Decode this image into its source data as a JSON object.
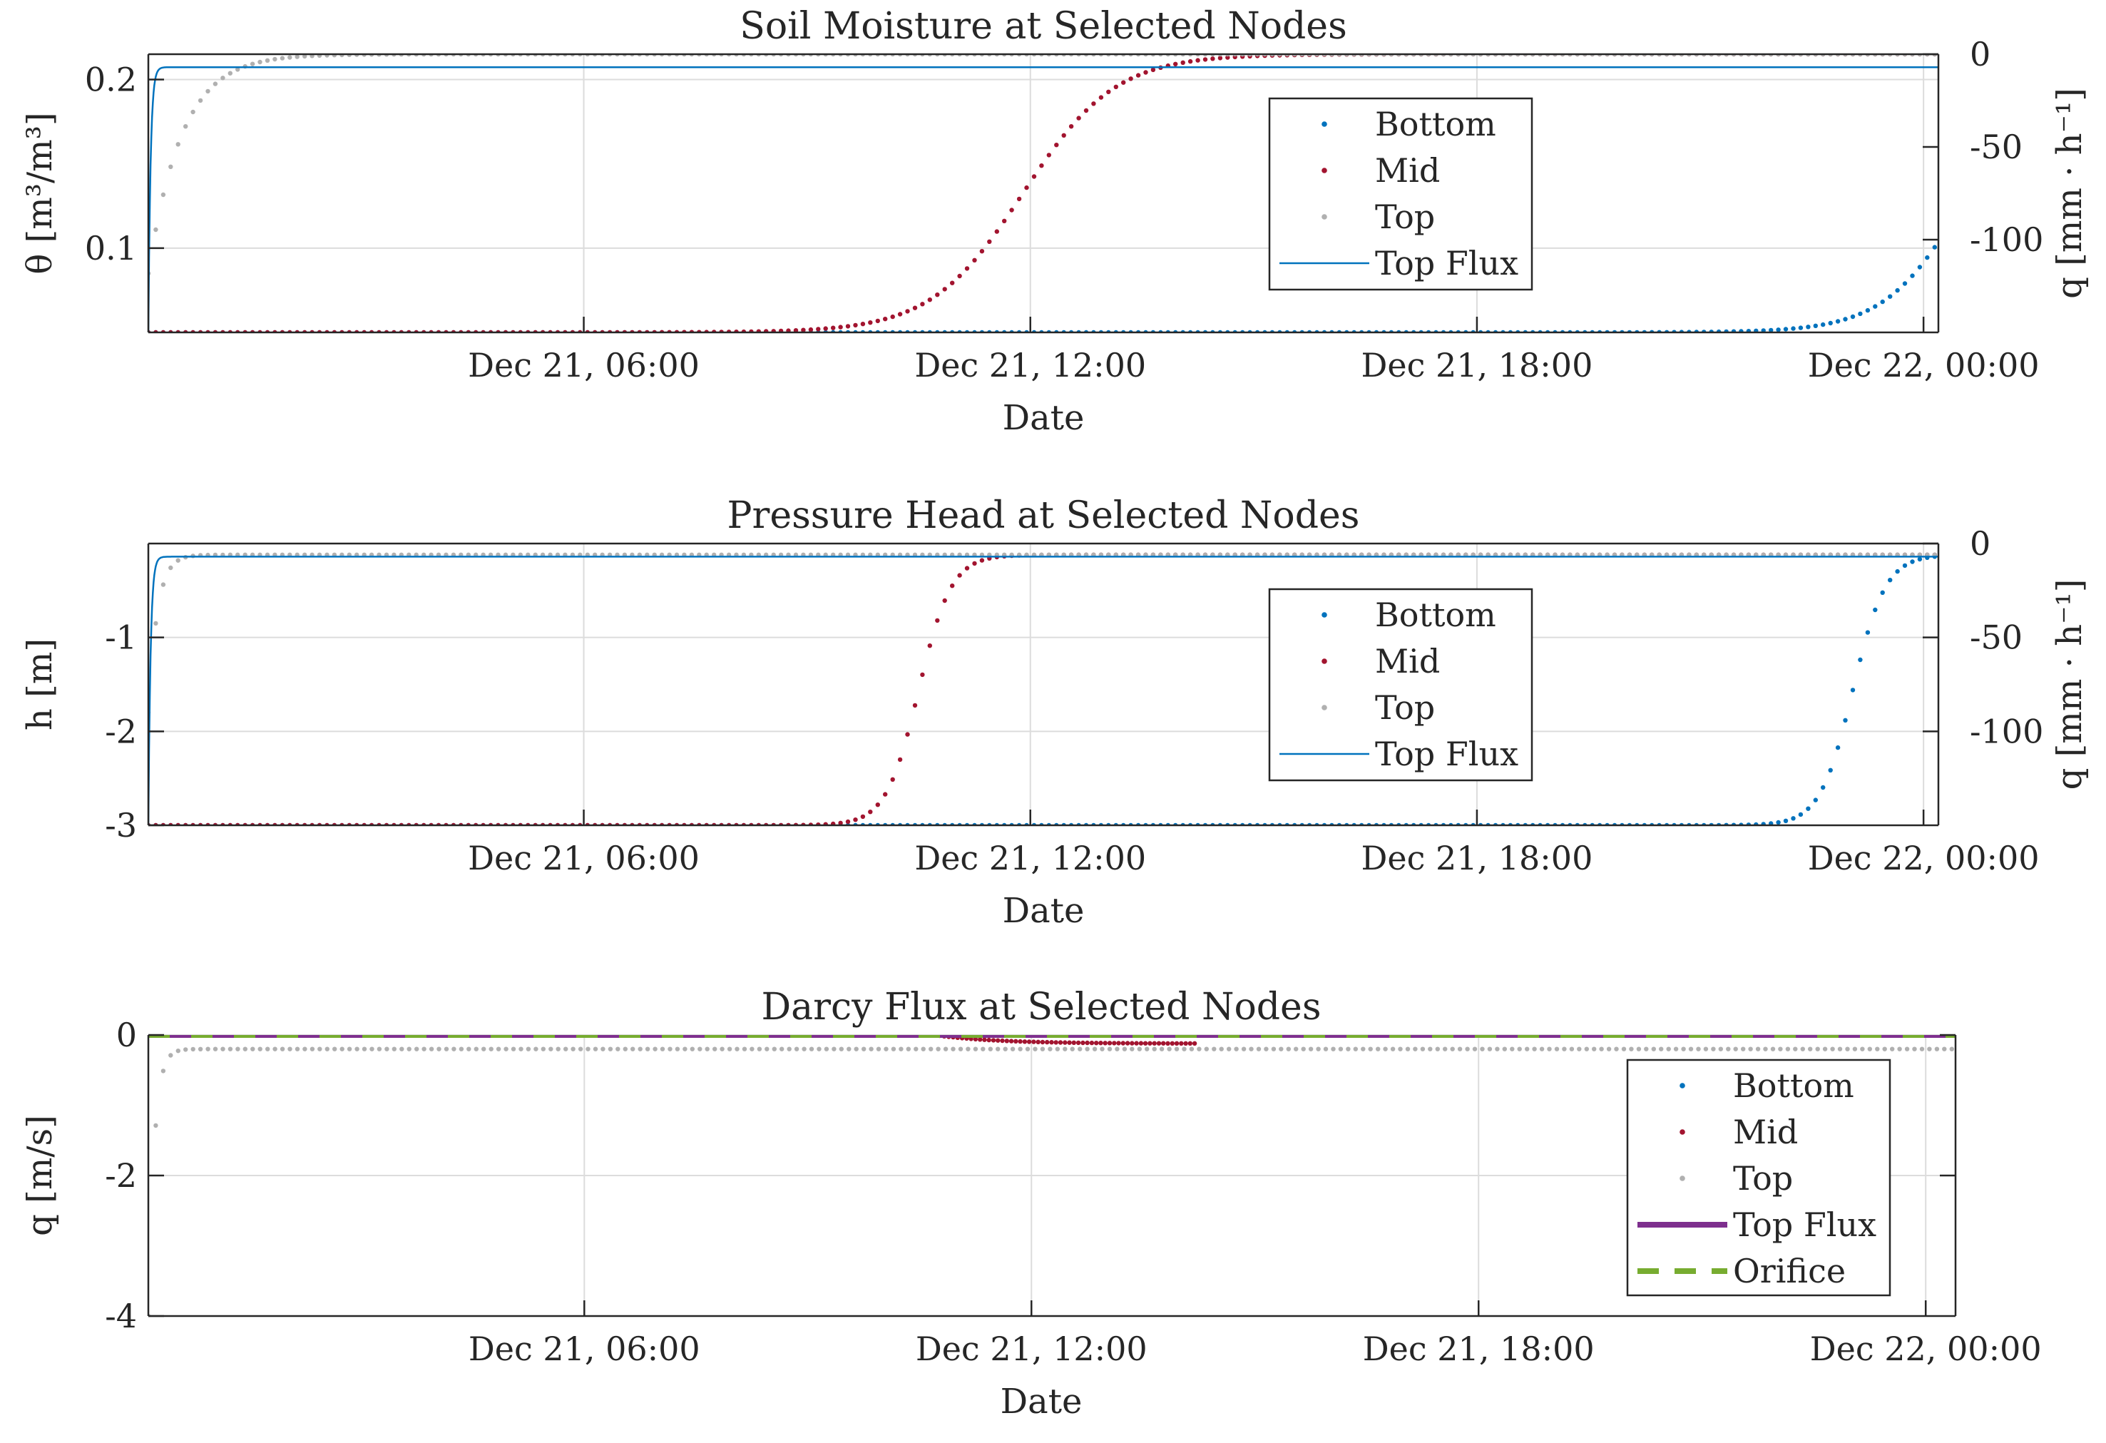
{
  "colors": {
    "bottom": "#0072BD",
    "mid": "#A2142F",
    "top": "#B0B0B0",
    "top_flux_line": "#0072BD",
    "top_flux_thick": "#7E2F8E",
    "orifice": "#77AC30"
  },
  "chart_data": [
    {
      "type": "scatter",
      "title": "Soil Moisture at Selected Nodes",
      "xlabel": "Date",
      "ylabel": "θ [m³/m³]",
      "ylabel_right": "q [mm · h⁻¹]",
      "x_tick_labels": [
        "Dec 21, 06:00",
        "Dec 21, 12:00",
        "Dec 21, 18:00",
        "Dec 22, 00:00"
      ],
      "x_ticks_hours": [
        6,
        12,
        18,
        24
      ],
      "xlim_hours": [
        0.15,
        24.2
      ],
      "ylim": [
        0.05,
        0.215
      ],
      "y_ticks": [
        0.1,
        0.2
      ],
      "y_tick_labels": [
        "0.1",
        "0.2"
      ],
      "y2lim": [
        -150,
        0
      ],
      "y2_ticks": [
        0,
        -50,
        -100
      ],
      "y2_tick_labels": [
        "0",
        "-50",
        "-100"
      ],
      "grid": true,
      "legend": {
        "position": "upper-right-inset",
        "entries": [
          "Bottom",
          "Mid",
          "Top",
          "Top Flux"
        ]
      },
      "series": [
        {
          "name": "Bottom",
          "curve": "logistic",
          "base": 0.05,
          "peak": 0.215,
          "center_hours": 24.6,
          "width_hours": 0.55
        },
        {
          "name": "Mid",
          "curve": "logistic",
          "base": 0.05,
          "peak": 0.215,
          "center_hours": 11.9,
          "width_hours": 0.62
        },
        {
          "name": "Top",
          "curve": "exp_rise",
          "base": 0.085,
          "peak": 0.215,
          "tau_hours": 0.45
        },
        {
          "name": "Top Flux",
          "axis": "right",
          "curve": "exp_drop",
          "start": -150,
          "end": -7,
          "tau_hours": 0.03
        }
      ]
    },
    {
      "type": "scatter",
      "title": "Pressure Head at Selected Nodes",
      "xlabel": "Date",
      "ylabel": "h [m]",
      "ylabel_right": "q [mm · h⁻¹]",
      "x_tick_labels": [
        "Dec 21, 06:00",
        "Dec 21, 12:00",
        "Dec 21, 18:00",
        "Dec 22, 00:00"
      ],
      "x_ticks_hours": [
        6,
        12,
        18,
        24
      ],
      "xlim_hours": [
        0.15,
        24.2
      ],
      "ylim": [
        -3,
        0
      ],
      "y_ticks": [
        -1,
        -2,
        -3
      ],
      "y_tick_labels": [
        "-1",
        "-2",
        "-3"
      ],
      "y2lim": [
        -150,
        0
      ],
      "y2_ticks": [
        0,
        -50,
        -100
      ],
      "y2_tick_labels": [
        "0",
        "-50",
        "-100"
      ],
      "grid": true,
      "legend": {
        "position": "upper-right-inset",
        "entries": [
          "Bottom",
          "Mid",
          "Top",
          "Top Flux"
        ]
      },
      "series": [
        {
          "name": "Bottom",
          "curve": "logistic",
          "base": -3,
          "peak": -0.12,
          "center_hours": 23.05,
          "width_hours": 0.22
        },
        {
          "name": "Mid",
          "curve": "logistic",
          "base": -3,
          "peak": -0.12,
          "center_hours": 10.5,
          "width_hours": 0.22
        },
        {
          "name": "Top",
          "curve": "exp_rise",
          "base": -1.8,
          "peak": -0.12,
          "tau_hours": 0.12
        },
        {
          "name": "Top Flux",
          "axis": "right",
          "curve": "exp_drop",
          "start": -150,
          "end": -7,
          "tau_hours": 0.03
        }
      ]
    },
    {
      "type": "line",
      "title": "Darcy Flux at Selected Nodes",
      "xlabel": "Date",
      "ylabel": "q [m/s]",
      "x_tick_labels": [
        "Dec 21, 06:00",
        "Dec 21, 12:00",
        "Dec 21, 18:00",
        "Dec 22, 00:00"
      ],
      "x_ticks_hours": [
        6,
        12,
        18,
        24
      ],
      "xlim_hours": [
        0.15,
        24.4
      ],
      "ylim": [
        -4,
        0
      ],
      "y_ticks": [
        0,
        -2,
        -4
      ],
      "y_tick_labels": [
        "0",
        "-2",
        "-4"
      ],
      "grid": true,
      "legend": {
        "position": "lower-right-inset",
        "entries": [
          "Bottom",
          "Mid",
          "Top",
          "Top Flux",
          "Orifice"
        ]
      },
      "series": [
        {
          "name": "Bottom",
          "curve": "constant",
          "value": 0
        },
        {
          "name": "Mid",
          "curve": "dip",
          "value": -0.12,
          "start_hours": 10.7,
          "end_hours": 14
        },
        {
          "name": "Top",
          "curve": "exp_settle",
          "start": -4,
          "end": -0.2,
          "tau_hours": 0.08
        },
        {
          "name": "Top Flux",
          "curve": "constant",
          "value": 0
        },
        {
          "name": "Orifice",
          "curve": "constant",
          "value": 0
        }
      ]
    }
  ]
}
